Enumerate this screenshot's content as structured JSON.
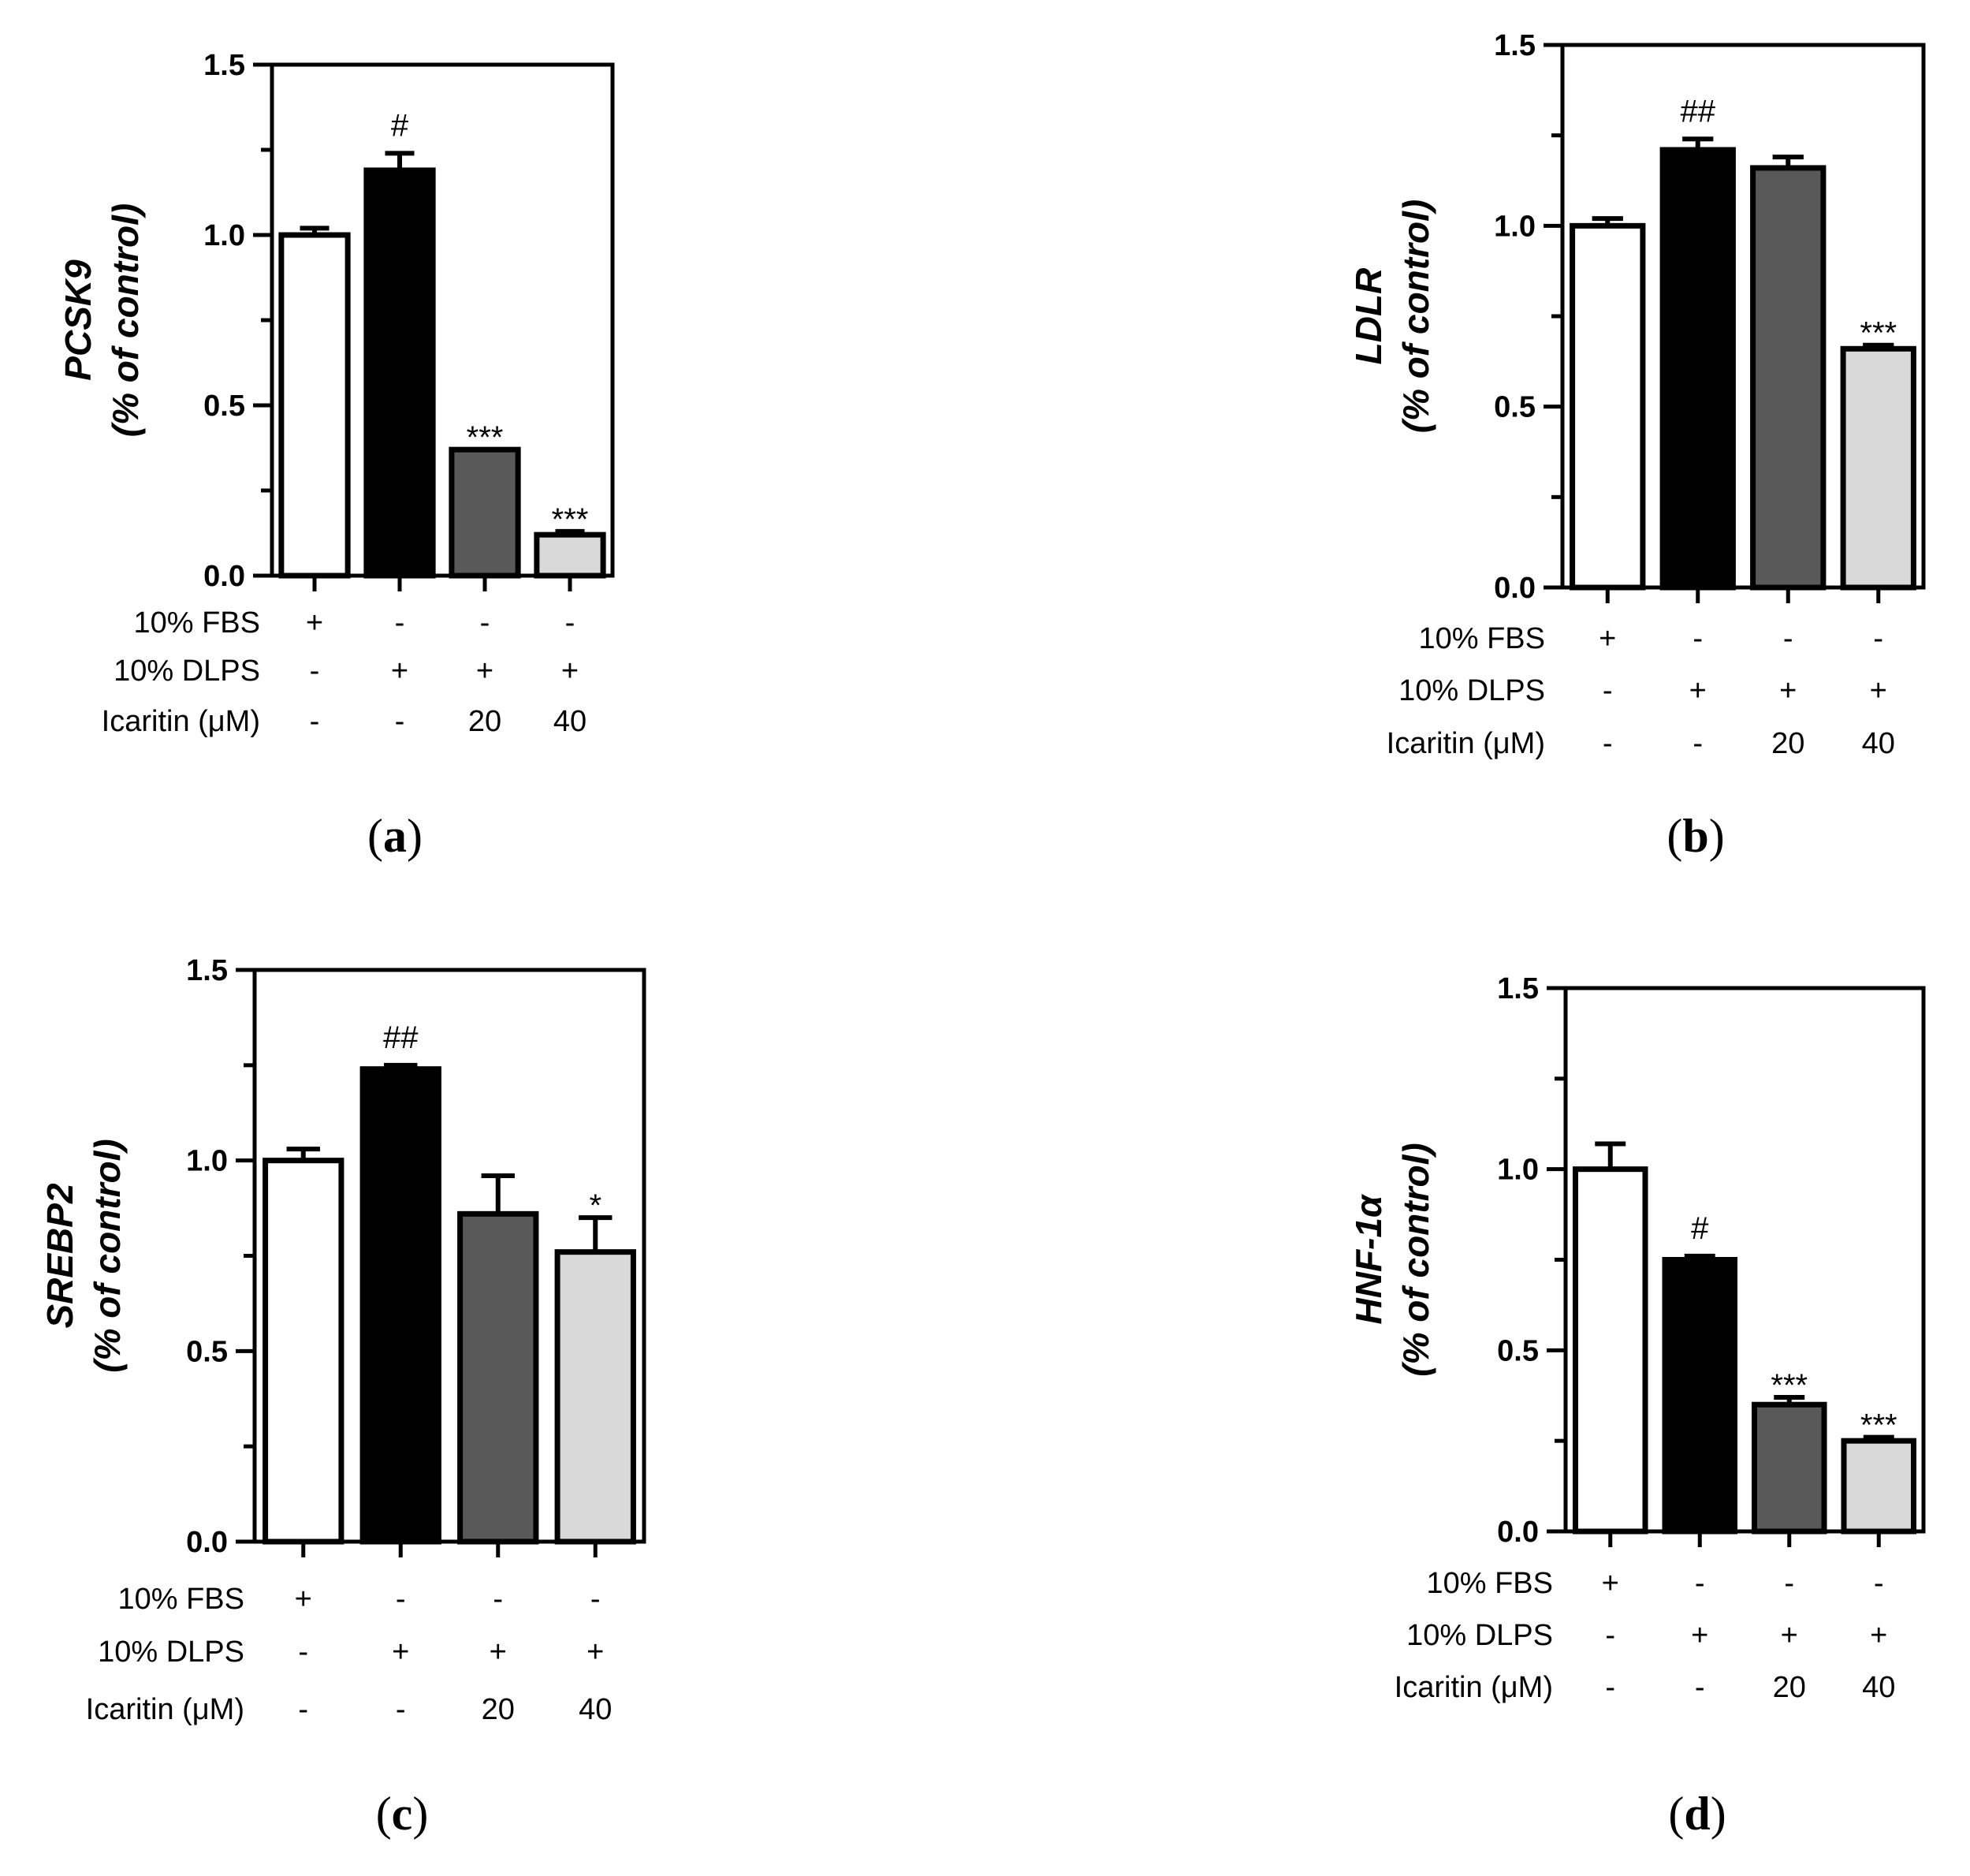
{
  "chart_data": [
    {
      "type": "bar",
      "panel_label": "(a)",
      "panel_letter": "a",
      "ylabel_gene": "PCSK9",
      "ylabel_unit": "(% of control)",
      "ylim": [
        0,
        1.5
      ],
      "yticks": [
        "0.0",
        "0.5",
        "1.0",
        "1.5"
      ],
      "categories": [
        "FBS",
        "DLPS",
        "DLPS + Icaritin 20 µM",
        "DLPS + Icaritin 40 µM"
      ],
      "values": [
        1.0,
        1.19,
        0.37,
        0.12
      ],
      "errors": [
        0.02,
        0.05,
        0.0,
        0.01
      ],
      "significance": [
        "",
        "#",
        "***",
        "***"
      ],
      "bar_colors": [
        "#ffffff",
        "#000000",
        "#595959",
        "#d9d9d9"
      ],
      "conditions": [
        {
          "label": "10% FBS",
          "values": [
            "+",
            "-",
            "-",
            "-"
          ]
        },
        {
          "label": "10% DLPS",
          "values": [
            "-",
            "+",
            "+",
            "+"
          ]
        },
        {
          "label": "Icaritin (μM)",
          "values": [
            "-",
            "-",
            "20",
            "40"
          ]
        }
      ]
    },
    {
      "type": "bar",
      "panel_label": "(b)",
      "panel_letter": "b",
      "ylabel_gene": "LDLR",
      "ylabel_unit": "(% of control)",
      "ylim": [
        0,
        1.5
      ],
      "yticks": [
        "0.0",
        "0.5",
        "1.0",
        "1.5"
      ],
      "categories": [
        "FBS",
        "DLPS",
        "DLPS + Icaritin 20 µM",
        "DLPS + Icaritin 40 µM"
      ],
      "values": [
        1.0,
        1.21,
        1.16,
        0.66
      ],
      "errors": [
        0.02,
        0.03,
        0.03,
        0.01
      ],
      "significance": [
        "",
        "##",
        "",
        "***"
      ],
      "bar_colors": [
        "#ffffff",
        "#000000",
        "#595959",
        "#d9d9d9"
      ],
      "conditions": [
        {
          "label": "10% FBS",
          "values": [
            "+",
            "-",
            "-",
            "-"
          ]
        },
        {
          "label": "10% DLPS",
          "values": [
            "-",
            "+",
            "+",
            "+"
          ]
        },
        {
          "label": "Icaritin (μM)",
          "values": [
            "-",
            "-",
            "20",
            "40"
          ]
        }
      ]
    },
    {
      "type": "bar",
      "panel_label": "(c)",
      "panel_letter": "c",
      "ylabel_gene": "SREBP2",
      "ylabel_unit": "(% of control)",
      "ylim": [
        0,
        1.5
      ],
      "yticks": [
        "0.0",
        "0.5",
        "1.0",
        "1.5"
      ],
      "categories": [
        "FBS",
        "DLPS",
        "DLPS + Icaritin 20 µM",
        "DLPS + Icaritin 40 µM"
      ],
      "values": [
        1.0,
        1.24,
        0.86,
        0.76
      ],
      "errors": [
        0.03,
        0.01,
        0.1,
        0.09
      ],
      "significance": [
        "",
        "##",
        "",
        "*"
      ],
      "bar_colors": [
        "#ffffff",
        "#000000",
        "#595959",
        "#d9d9d9"
      ],
      "conditions": [
        {
          "label": "10% FBS",
          "values": [
            "+",
            "-",
            "-",
            "-"
          ]
        },
        {
          "label": "10% DLPS",
          "values": [
            "-",
            "+",
            "+",
            "+"
          ]
        },
        {
          "label": "Icaritin (μM)",
          "values": [
            "-",
            "-",
            "20",
            "40"
          ]
        }
      ]
    },
    {
      "type": "bar",
      "panel_label": "(d)",
      "panel_letter": "d",
      "ylabel_gene": "HNF-1α",
      "ylabel_unit": "(% of control)",
      "ylim": [
        0,
        1.5
      ],
      "yticks": [
        "0.0",
        "0.5",
        "1.0",
        "1.5"
      ],
      "categories": [
        "FBS",
        "DLPS",
        "DLPS + Icaritin 20 µM",
        "DLPS + Icaritin 40 µM"
      ],
      "values": [
        1.0,
        0.75,
        0.35,
        0.25
      ],
      "errors": [
        0.07,
        0.01,
        0.02,
        0.01
      ],
      "significance": [
        "",
        "#",
        "***",
        "***"
      ],
      "bar_colors": [
        "#ffffff",
        "#000000",
        "#595959",
        "#d9d9d9"
      ],
      "conditions": [
        {
          "label": "10% FBS",
          "values": [
            "+",
            "-",
            "-",
            "-"
          ]
        },
        {
          "label": "10% DLPS",
          "values": [
            "-",
            "+",
            "+",
            "+"
          ]
        },
        {
          "label": "Icaritin (μM)",
          "values": [
            "-",
            "-",
            "20",
            "40"
          ]
        }
      ]
    }
  ]
}
